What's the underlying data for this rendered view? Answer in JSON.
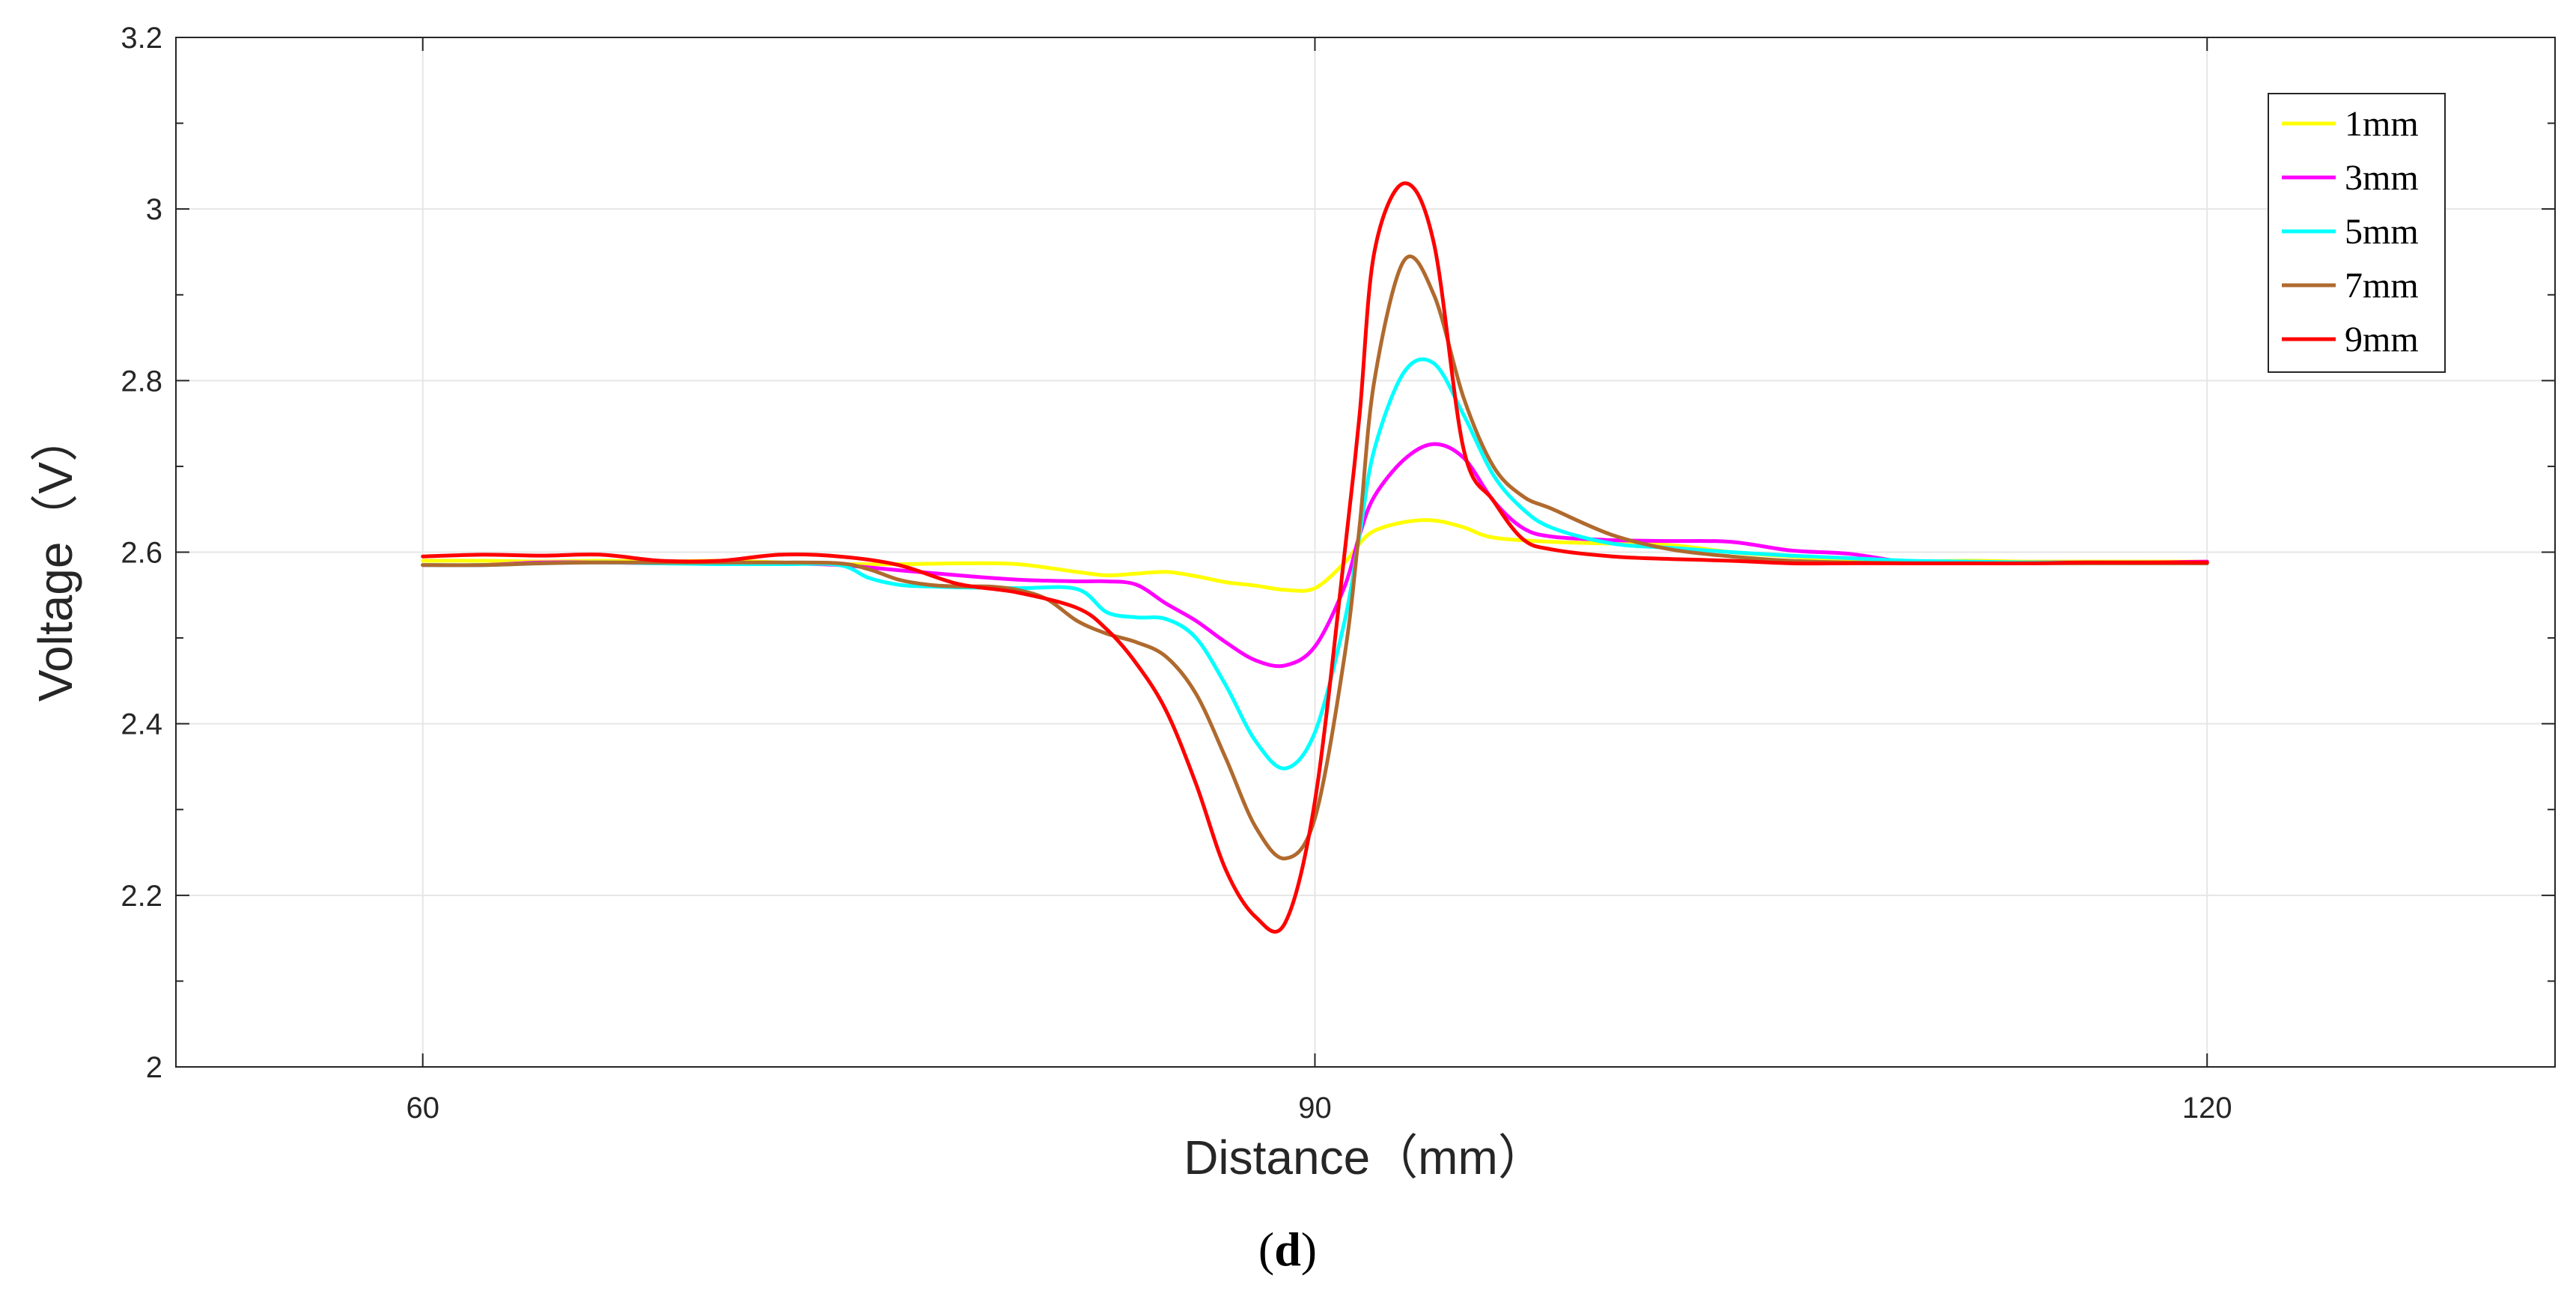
{
  "chart_data": {
    "type": "line",
    "title": "",
    "xlabel": "Distance（mm）",
    "ylabel": "Voltage（V）",
    "panel_label": "(d)",
    "panel_label_parts": {
      "open": "(",
      "letter": "d",
      "close": ")"
    },
    "xlim": [
      51.7,
      131.7
    ],
    "ylim": [
      2.0,
      3.2
    ],
    "xticks": [
      60,
      90,
      120
    ],
    "yticks": [
      2,
      2.2,
      2.4,
      2.6,
      2.8,
      3,
      3.2
    ],
    "xtick_labels": [
      "60",
      "90",
      "120"
    ],
    "ytick_labels": [
      "2",
      "2.2",
      "2.4",
      "2.6",
      "2.8",
      "3",
      "3.2"
    ],
    "grid": true,
    "legend_position": "top-right",
    "series": [
      {
        "name": "1mm",
        "color": "#FFFF00",
        "x": [
          60,
          62,
          64,
          66,
          68,
          70,
          72,
          74,
          76,
          78,
          80,
          82,
          83,
          84,
          85,
          86,
          87,
          88,
          89,
          90,
          91,
          91.5,
          92,
          93,
          94,
          95,
          96,
          98,
          100,
          102,
          104,
          106,
          108,
          110,
          112,
          114,
          116,
          118,
          120
        ],
        "y": [
          2.59,
          2.59,
          2.589,
          2.59,
          2.589,
          2.59,
          2.588,
          2.586,
          2.586,
          2.587,
          2.586,
          2.577,
          2.573,
          2.575,
          2.577,
          2.572,
          2.565,
          2.561,
          2.556,
          2.558,
          2.588,
          2.61,
          2.625,
          2.635,
          2.637,
          2.629,
          2.617,
          2.612,
          2.61,
          2.608,
          2.6,
          2.595,
          2.59,
          2.589,
          2.59,
          2.589,
          2.589,
          2.589,
          2.589
        ]
      },
      {
        "name": "3mm",
        "color": "#FF00FF",
        "x": [
          60,
          62,
          64,
          66,
          68,
          70,
          72,
          74,
          76,
          78,
          80,
          82,
          83,
          84,
          85,
          86,
          87,
          88,
          89,
          90,
          91,
          91.5,
          92,
          93,
          94,
          95,
          96,
          97,
          98,
          100,
          102,
          104,
          106,
          108,
          110,
          112,
          114,
          116,
          118,
          120
        ],
        "y": [
          2.585,
          2.585,
          2.588,
          2.588,
          2.587,
          2.587,
          2.587,
          2.585,
          2.579,
          2.573,
          2.568,
          2.566,
          2.566,
          2.562,
          2.54,
          2.52,
          2.495,
          2.474,
          2.468,
          2.49,
          2.56,
          2.62,
          2.665,
          2.708,
          2.726,
          2.71,
          2.66,
          2.628,
          2.618,
          2.614,
          2.613,
          2.612,
          2.602,
          2.598,
          2.588,
          2.588,
          2.588,
          2.588,
          2.588,
          2.589
        ]
      },
      {
        "name": "5mm",
        "color": "#00FFFF",
        "x": [
          60,
          62,
          64,
          66,
          68,
          70,
          72,
          74,
          75,
          76,
          77,
          78,
          80,
          82,
          83,
          84,
          85,
          86,
          87,
          88,
          89,
          90,
          91,
          91.5,
          92,
          93,
          94,
          95,
          96,
          97,
          98,
          100,
          102,
          104,
          106,
          108,
          110,
          112,
          114,
          116,
          118,
          120
        ],
        "y": [
          2.585,
          2.585,
          2.587,
          2.588,
          2.587,
          2.586,
          2.586,
          2.585,
          2.57,
          2.562,
          2.56,
          2.559,
          2.558,
          2.557,
          2.53,
          2.524,
          2.522,
          2.5,
          2.445,
          2.38,
          2.348,
          2.39,
          2.52,
          2.62,
          2.72,
          2.81,
          2.82,
          2.76,
          2.69,
          2.65,
          2.628,
          2.61,
          2.605,
          2.6,
          2.596,
          2.593,
          2.59,
          2.589,
          2.588,
          2.588,
          2.588,
          2.587
        ]
      },
      {
        "name": "7mm",
        "color": "#B06A2E",
        "x": [
          60,
          62,
          64,
          66,
          68,
          70,
          72,
          74,
          75,
          76,
          77,
          78,
          79,
          80,
          81,
          82,
          83,
          84,
          85,
          86,
          87,
          88,
          89,
          90,
          91,
          91.5,
          92,
          93,
          94,
          95,
          96,
          97,
          98,
          100,
          102,
          104,
          106,
          108,
          110,
          112,
          114,
          116,
          118,
          120
        ],
        "y": [
          2.585,
          2.585,
          2.587,
          2.588,
          2.588,
          2.588,
          2.588,
          2.587,
          2.58,
          2.568,
          2.562,
          2.56,
          2.56,
          2.556,
          2.545,
          2.52,
          2.505,
          2.495,
          2.478,
          2.435,
          2.36,
          2.28,
          2.243,
          2.29,
          2.48,
          2.63,
          2.8,
          2.94,
          2.9,
          2.78,
          2.7,
          2.665,
          2.65,
          2.62,
          2.603,
          2.595,
          2.59,
          2.588,
          2.587,
          2.587,
          2.587,
          2.587,
          2.587,
          2.587
        ]
      },
      {
        "name": "9mm",
        "color": "#FF0000",
        "x": [
          60,
          62,
          64,
          66,
          68,
          70,
          72,
          74,
          76,
          78,
          80,
          82,
          83,
          84,
          85,
          86,
          87,
          88,
          89,
          90,
          91,
          91.5,
          92,
          93,
          94,
          95,
          96,
          97,
          98,
          100,
          102,
          104,
          106,
          108,
          110,
          112,
          114,
          116,
          118,
          120
        ],
        "y": [
          2.595,
          2.597,
          2.596,
          2.597,
          2.59,
          2.59,
          2.597,
          2.595,
          2.585,
          2.563,
          2.553,
          2.535,
          2.51,
          2.47,
          2.415,
          2.33,
          2.23,
          2.175,
          2.168,
          2.31,
          2.6,
          2.76,
          2.95,
          3.03,
          2.96,
          2.72,
          2.66,
          2.615,
          2.603,
          2.595,
          2.592,
          2.59,
          2.587,
          2.587,
          2.587,
          2.587,
          2.587,
          2.588,
          2.588,
          2.588
        ]
      }
    ]
  }
}
